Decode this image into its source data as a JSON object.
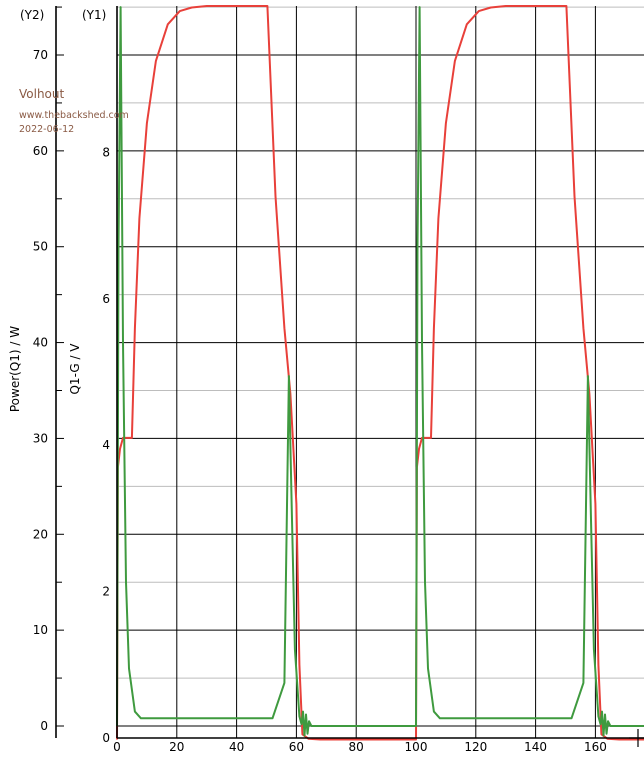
{
  "watermark": {
    "author": "Volhout",
    "site": "www.thebackshed.com",
    "date": "2022-06-12"
  },
  "chart_data": {
    "type": "line",
    "title": "",
    "xlabel": "",
    "x_ticks": [
      0,
      20,
      40,
      60,
      80,
      100,
      120,
      140,
      160
    ],
    "xlim": [
      0,
      177
    ],
    "y1": {
      "corner_label": "(Y1)",
      "label": "Q1-G / V",
      "ylim": [
        0,
        10
      ],
      "ticks": [
        0,
        2,
        4,
        6,
        8
      ]
    },
    "y2": {
      "corner_label": "(Y2)",
      "label": "Power(Q1) / W",
      "ylim": [
        -1.2,
        75
      ],
      "ticks": [
        0,
        10,
        20,
        30,
        40,
        50,
        60,
        70
      ]
    },
    "grid": true,
    "series": [
      {
        "axis": "y1",
        "color": "#e8403a",
        "x": [
          0,
          0.3,
          1,
          2,
          3,
          5,
          6,
          7.5,
          10,
          13,
          17,
          21,
          25,
          30,
          40,
          45,
          48,
          50,
          50.3,
          53,
          56,
          58,
          60,
          61,
          62,
          64,
          68,
          80,
          90,
          99,
          99.5,
          100,
          100.3,
          101,
          102,
          103,
          105,
          106,
          107.5,
          110,
          113,
          117,
          121,
          125,
          130,
          140,
          145,
          148,
          150,
          150.3,
          153,
          156,
          158,
          160,
          161,
          162,
          164,
          168,
          177
        ],
        "y": [
          -0.02,
          3.7,
          3.95,
          4.1,
          4.1,
          4.1,
          5.6,
          7.1,
          8.4,
          9.25,
          9.75,
          9.93,
          9.98,
          10.0,
          10.0,
          10.0,
          10.0,
          10.0,
          10.0,
          7.4,
          5.6,
          4.7,
          3.2,
          1.0,
          0.05,
          -0.01,
          -0.02,
          -0.02,
          -0.02,
          -0.02,
          -0.02,
          -0.02,
          3.7,
          3.95,
          4.1,
          4.1,
          4.1,
          5.6,
          7.1,
          8.4,
          9.25,
          9.75,
          9.93,
          9.98,
          10.0,
          10.0,
          10.0,
          10.0,
          10.0,
          10.0,
          7.4,
          5.6,
          4.7,
          3.2,
          1.0,
          0.05,
          -0.01,
          -0.02,
          -0.02
        ]
      },
      {
        "axis": "y2",
        "color": "#3f9a3f",
        "x": [
          0,
          0.5,
          1.2,
          2,
          3,
          4,
          6,
          8,
          20,
          40,
          50,
          52,
          56,
          57.5,
          58.5,
          59.5,
          61,
          61.7,
          62.2,
          62.7,
          63.2,
          63.7,
          64.2,
          65,
          70,
          80,
          90,
          99.5,
          100,
          100.5,
          101.2,
          102,
          103,
          104,
          106,
          108,
          120,
          140,
          150,
          152,
          156,
          157.5,
          158.5,
          159.5,
          161,
          161.7,
          162.2,
          162.7,
          163.2,
          163.7,
          164.2,
          165,
          170,
          177
        ],
        "y": [
          0,
          50,
          75,
          40,
          15,
          6,
          1.5,
          0.8,
          0.8,
          0.8,
          0.8,
          0.8,
          4.5,
          36.5,
          22,
          8,
          1,
          0.2,
          1.5,
          -1,
          1.2,
          -0.8,
          0.5,
          0,
          0,
          0,
          0,
          0,
          0,
          50,
          75,
          40,
          15,
          6,
          1.5,
          0.8,
          0.8,
          0.8,
          0.8,
          0.8,
          4.5,
          36.5,
          22,
          8,
          1,
          0.2,
          1.5,
          -1,
          1.2,
          -0.8,
          0.5,
          0,
          0,
          0
        ]
      }
    ]
  }
}
